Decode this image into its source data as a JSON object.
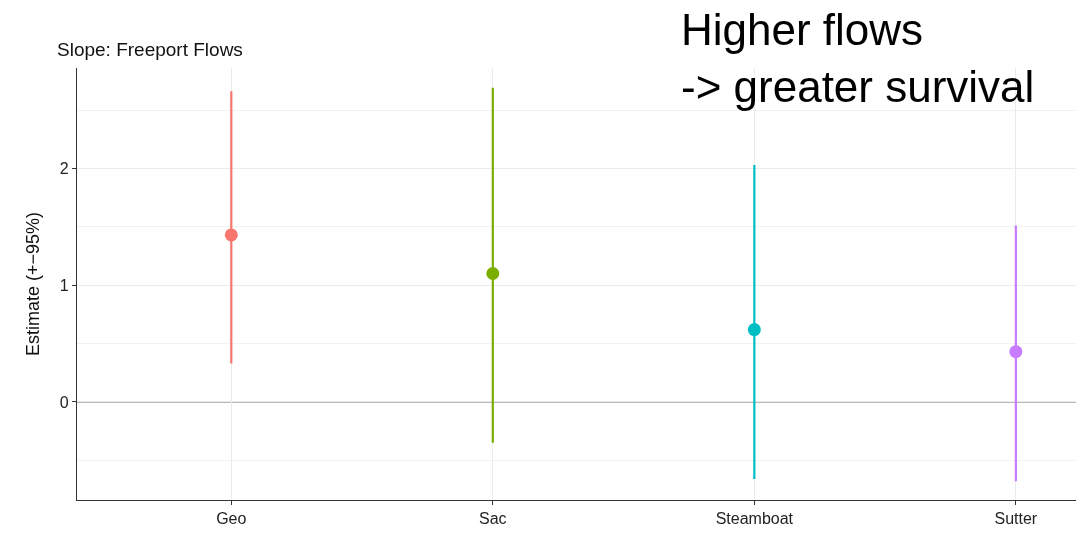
{
  "chart_data": {
    "type": "scatter",
    "title": "Slope: Freeport Flows",
    "ylabel": "Estimate (+−95%)",
    "annotations": [
      "Higher flows -> greater survival"
    ],
    "categories": [
      "Geo",
      "Sac",
      "Steamboat",
      "Sutter"
    ],
    "values": [
      1.43,
      1.1,
      0.62,
      0.43
    ],
    "colors": [
      "#f8766d",
      "#7cae00",
      "#00bfc4",
      "#c77cff"
    ],
    "errors": [
      [
        0.33,
        2.66
      ],
      [
        -0.35,
        2.69
      ],
      [
        -0.66,
        2.03
      ],
      [
        -0.68,
        1.51
      ]
    ],
    "ylim": [
      -0.84,
      2.86
    ],
    "yticks": [
      {
        "value": -0.5,
        "label": null
      },
      0,
      {
        "value": 0.5,
        "label": null
      },
      1,
      {
        "value": 1.5,
        "label": null
      },
      2,
      {
        "value": 2.5,
        "label": null
      }
    ],
    "ref_lines": [
      {
        "axis": "y",
        "value": 0,
        "color": "#a0a0a0"
      }
    ],
    "grid": true,
    "marker": "circle"
  }
}
